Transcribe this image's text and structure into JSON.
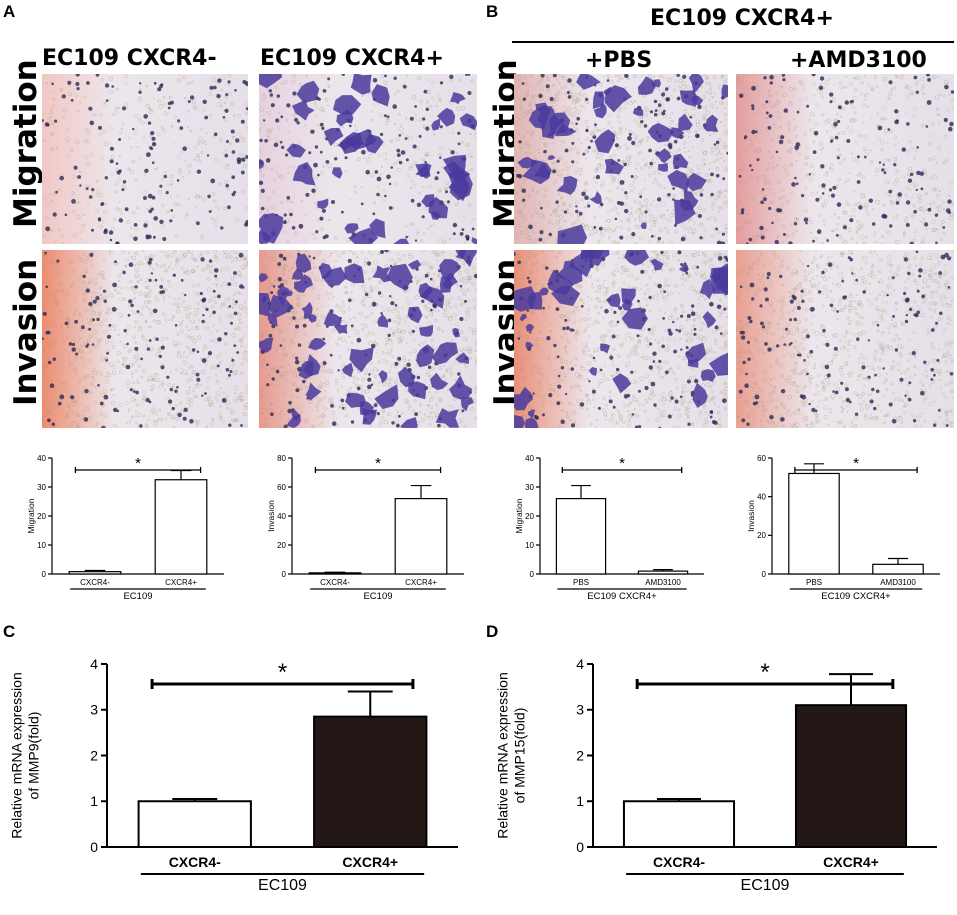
{
  "panels": {
    "A": {
      "letter": "A",
      "col_headers": [
        "EC109 CXCR4-",
        "EC109 CXCR4+"
      ],
      "row_labels": [
        "Migration",
        "Invasion"
      ]
    },
    "B": {
      "letter": "B",
      "group_header": "EC109 CXCR4+",
      "col_headers": [
        "+PBS",
        "+AMD3100"
      ],
      "row_labels": [
        "Migration",
        "Invasion"
      ]
    },
    "C": {
      "letter": "C"
    },
    "D": {
      "letter": "D"
    }
  },
  "micrographs": {
    "background_colors": [
      "#f2e4e6",
      "#ece6ec",
      "#e6dfe8"
    ],
    "stain_color": "#4a3a9c",
    "nucleus_color": "#2b2a55",
    "items": [
      {
        "name": "a-migration-cxcr4-neg",
        "stain": "low",
        "texture": "light",
        "edge_tint": "#f1c7c4"
      },
      {
        "name": "a-migration-cxcr4-pos",
        "stain": "high",
        "texture": "light",
        "edge_tint": "#e7d1df"
      },
      {
        "name": "a-invasion-cxcr4-neg",
        "stain": "low",
        "texture": "dense",
        "edge_tint": "#ee8b6f"
      },
      {
        "name": "a-invasion-cxcr4-pos",
        "stain": "very-high",
        "texture": "dense",
        "edge_tint": "#e89a8e"
      },
      {
        "name": "b-migration-pbs",
        "stain": "high",
        "texture": "dense",
        "edge_tint": "#e1b5b3"
      },
      {
        "name": "b-migration-amd3100",
        "stain": "low",
        "texture": "medium",
        "edge_tint": "#e49d9e"
      },
      {
        "name": "b-invasion-pbs",
        "stain": "high",
        "texture": "dense",
        "edge_tint": "#eb8e77"
      },
      {
        "name": "b-invasion-amd3100",
        "stain": "low",
        "texture": "dense",
        "edge_tint": "#ea9f91"
      }
    ]
  },
  "chart_data": [
    {
      "type": "bar",
      "panel": "A",
      "name": "a-migration-chart",
      "categories": [
        "CXCR4-",
        "CXCR4+"
      ],
      "values": [
        0.8,
        32.5
      ],
      "errors": [
        0.4,
        3.2
      ],
      "ylabel": "Migration",
      "ylim": [
        0,
        40
      ],
      "yticks": [
        0,
        10,
        20,
        30,
        40
      ],
      "group_label": "EC109",
      "significance": "*",
      "bar_colors": [
        "#ffffff",
        "#ffffff"
      ]
    },
    {
      "type": "bar",
      "panel": "A",
      "name": "a-invasion-chart",
      "categories": [
        "CXCR4-",
        "CXCR4+"
      ],
      "values": [
        0.8,
        52
      ],
      "errors": [
        0.4,
        9
      ],
      "ylabel": "Invasion",
      "ylim": [
        0,
        80
      ],
      "yticks": [
        0,
        20,
        40,
        60,
        80
      ],
      "group_label": "EC109",
      "significance": "*",
      "bar_colors": [
        "#ffffff",
        "#ffffff"
      ]
    },
    {
      "type": "bar",
      "panel": "B",
      "name": "b-migration-chart",
      "categories": [
        "PBS",
        "AMD3100"
      ],
      "values": [
        26,
        1
      ],
      "errors": [
        4.5,
        0.5
      ],
      "ylabel": "Migration",
      "ylim": [
        0,
        40
      ],
      "yticks": [
        0,
        10,
        20,
        30,
        40
      ],
      "group_label": "EC109 CXCR4+",
      "significance": "*",
      "bar_colors": [
        "#ffffff",
        "#ffffff"
      ]
    },
    {
      "type": "bar",
      "panel": "B",
      "name": "b-invasion-chart",
      "categories": [
        "PBS",
        "AMD3100"
      ],
      "values": [
        52,
        5
      ],
      "errors": [
        5,
        3
      ],
      "ylabel": "Invasion",
      "ylim": [
        0,
        60
      ],
      "yticks": [
        0,
        20,
        40,
        60
      ],
      "group_label": "EC109 CXCR4+",
      "significance": "*",
      "bar_colors": [
        "#ffffff",
        "#ffffff"
      ]
    },
    {
      "type": "bar",
      "panel": "C",
      "name": "c-mmp9-chart",
      "categories": [
        "CXCR4-",
        "CXCR4+"
      ],
      "values": [
        1.0,
        2.85
      ],
      "errors": [
        0.05,
        0.55
      ],
      "ylabel": "Relative mRNA expression\nof MMP9(fold)",
      "ylim": [
        0,
        4
      ],
      "yticks": [
        0,
        1,
        2,
        3,
        4
      ],
      "group_label": "EC109",
      "significance": "*",
      "bar_colors": [
        "#ffffff",
        "#231816"
      ]
    },
    {
      "type": "bar",
      "panel": "D",
      "name": "d-mmp15-chart",
      "categories": [
        "CXCR4-",
        "CXCR4+"
      ],
      "values": [
        1.0,
        3.1
      ],
      "errors": [
        0.05,
        0.68
      ],
      "ylabel": "Relative mRNA expression\nof MMP15(fold)",
      "ylim": [
        0,
        4
      ],
      "yticks": [
        0,
        1,
        2,
        3,
        4
      ],
      "group_label": "EC109",
      "significance": "*",
      "bar_colors": [
        "#ffffff",
        "#231816"
      ]
    }
  ]
}
